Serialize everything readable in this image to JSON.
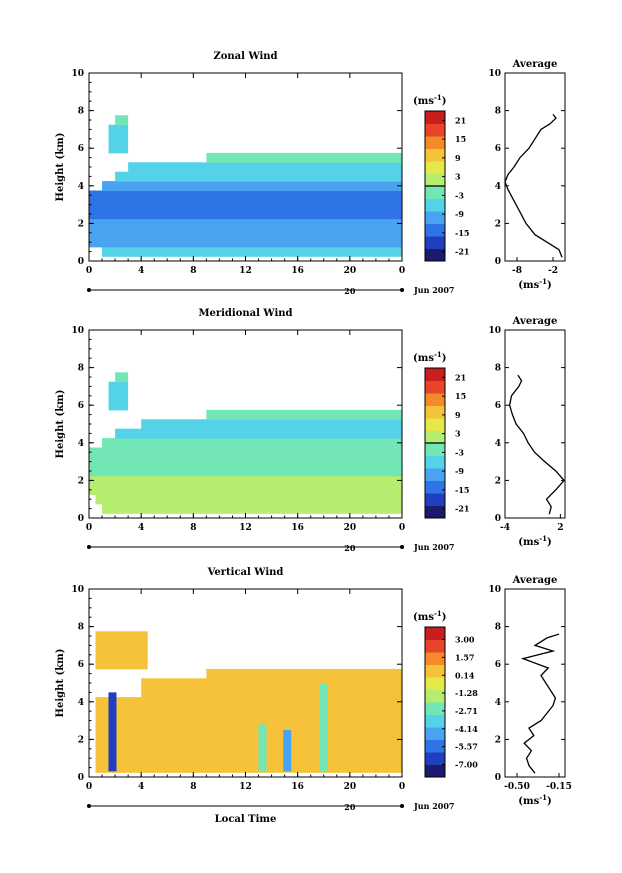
{
  "chart_data": [
    {
      "type": "heatmap",
      "title": "Zonal Wind",
      "ylabel": "Height (km)",
      "xlabel": "",
      "xlim": [
        0,
        24
      ],
      "ylim": [
        0,
        10
      ],
      "x_ticks": [
        "0",
        "4",
        "8",
        "12",
        "16",
        "20",
        "0"
      ],
      "y_ticks": [
        "0",
        "2",
        "4",
        "6",
        "8",
        "10"
      ],
      "date_label": "20",
      "date_suffix": "Jun 2007",
      "colorbar": {
        "unit": "(ms",
        "unit_exp": "-1",
        "unit_close": ")",
        "min": -24,
        "max": 24,
        "ticks": [
          "21",
          "15",
          "9",
          "3",
          "-3",
          "-9",
          "-15",
          "-21"
        ],
        "tick_values": [
          21,
          15,
          9,
          3,
          -3,
          -9,
          -15,
          -21
        ],
        "zero_line": true
      },
      "color_scale": [
        "#1a1a6e",
        "#1f3fbf",
        "#2f74e6",
        "#4aa3f0",
        "#54d3e8",
        "#73e6b5",
        "#b5ee6f",
        "#e6e84a",
        "#f5c23a",
        "#f58a2a",
        "#e8442a",
        "#c81e1e"
      ],
      "field": {
        "rows": [
          {
            "h": 0.5,
            "x": [
              1,
              24
            ],
            "v": -6
          },
          {
            "h": 1.0,
            "x": [
              0,
              24
            ],
            "v": -10
          },
          {
            "h": 1.5,
            "x": [
              0,
              24
            ],
            "v": -9
          },
          {
            "h": 2.0,
            "x": [
              0,
              24
            ],
            "v": -11
          },
          {
            "h": 2.5,
            "x": [
              0,
              24
            ],
            "v": -13
          },
          {
            "h": 3.0,
            "x": [
              0,
              24
            ],
            "v": -14
          },
          {
            "h": 3.5,
            "x": [
              0,
              24
            ],
            "v": -14
          },
          {
            "h": 4.0,
            "x": [
              1,
              24
            ],
            "v": -12
          },
          {
            "h": 4.5,
            "x": [
              2,
              24
            ],
            "v": -8
          },
          {
            "h": 5.0,
            "x": [
              3,
              24
            ],
            "v": -6
          },
          {
            "h": 5.5,
            "x": [
              9,
              24
            ],
            "v": -4
          },
          {
            "h": 6.0,
            "x": [
              1.5,
              3
            ],
            "v": -6
          },
          {
            "h": 6.5,
            "x": [
              1.5,
              3
            ],
            "v": -8
          },
          {
            "h": 7.0,
            "x": [
              1.5,
              3
            ],
            "v": -6
          },
          {
            "h": 7.5,
            "x": [
              2,
              3
            ],
            "v": -4
          }
        ]
      },
      "profile": {
        "title": "Average",
        "xlabel": "(ms",
        "xlabel_exp": "-1",
        "xlabel_close": ")",
        "xlim": [
          -10,
          0
        ],
        "x_ticks": [
          "-8",
          "-2"
        ],
        "x_tick_values": [
          -8,
          -2
        ],
        "y_ticks": [
          "0",
          "2",
          "4",
          "6",
          "8",
          "10"
        ],
        "points": [
          [
            -0.5,
            0.2
          ],
          [
            -1,
            0.6
          ],
          [
            -3,
            1.0
          ],
          [
            -5,
            1.4
          ],
          [
            -6.5,
            2.0
          ],
          [
            -7.5,
            2.6
          ],
          [
            -8.5,
            3.2
          ],
          [
            -9.5,
            3.8
          ],
          [
            -10,
            4.2
          ],
          [
            -9.5,
            4.6
          ],
          [
            -8.5,
            5.0
          ],
          [
            -7.5,
            5.5
          ],
          [
            -6,
            6.0
          ],
          [
            -5,
            6.5
          ],
          [
            -4,
            7.0
          ],
          [
            -2.5,
            7.3
          ],
          [
            -1.5,
            7.6
          ],
          [
            -2,
            7.8
          ]
        ]
      }
    },
    {
      "type": "heatmap",
      "title": "Meridional Wind",
      "ylabel": "Height (km)",
      "xlabel": "",
      "xlim": [
        0,
        24
      ],
      "ylim": [
        0,
        10
      ],
      "x_ticks": [
        "0",
        "4",
        "8",
        "12",
        "16",
        "20",
        "0"
      ],
      "y_ticks": [
        "0",
        "2",
        "4",
        "6",
        "8",
        "10"
      ],
      "date_label": "20",
      "date_suffix": "Jun 2007",
      "colorbar": {
        "unit": "(ms",
        "unit_exp": "-1",
        "unit_close": ")",
        "min": -24,
        "max": 24,
        "ticks": [
          "21",
          "15",
          "9",
          "3",
          "-3",
          "-9",
          "-15",
          "-21"
        ],
        "tick_values": [
          21,
          15,
          9,
          3,
          -3,
          -9,
          -15,
          -21
        ],
        "zero_line": true
      },
      "field": {
        "rows": [
          {
            "h": 0.5,
            "x": [
              1,
              24
            ],
            "v": 1
          },
          {
            "h": 1.0,
            "x": [
              0.5,
              24
            ],
            "v": 2
          },
          {
            "h": 1.5,
            "x": [
              0,
              24
            ],
            "v": 0
          },
          {
            "h": 2.0,
            "x": [
              0,
              24
            ],
            "v": 1
          },
          {
            "h": 2.5,
            "x": [
              0,
              24
            ],
            "v": -1
          },
          {
            "h": 3.0,
            "x": [
              0,
              24
            ],
            "v": -1
          },
          {
            "h": 3.5,
            "x": [
              0,
              24
            ],
            "v": -2
          },
          {
            "h": 4.0,
            "x": [
              1,
              24
            ],
            "v": -4
          },
          {
            "h": 4.5,
            "x": [
              2,
              24
            ],
            "v": -6
          },
          {
            "h": 5.0,
            "x": [
              4,
              24
            ],
            "v": -5
          },
          {
            "h": 5.5,
            "x": [
              9,
              24
            ],
            "v": -4
          },
          {
            "h": 6.0,
            "x": [
              1.5,
              3
            ],
            "v": -5
          },
          {
            "h": 6.5,
            "x": [
              1.5,
              3
            ],
            "v": -7
          },
          {
            "h": 7.0,
            "x": [
              1.5,
              3
            ],
            "v": -5
          },
          {
            "h": 7.5,
            "x": [
              2,
              3
            ],
            "v": -3
          }
        ]
      },
      "profile": {
        "title": "Average",
        "xlabel": "(ms",
        "xlabel_exp": "-1",
        "xlabel_close": ")",
        "xlim": [
          -4,
          2.5
        ],
        "x_ticks": [
          "-4",
          "2"
        ],
        "x_tick_values": [
          -4,
          2
        ],
        "y_ticks": [
          "0",
          "2",
          "4",
          "6",
          "8",
          "10"
        ],
        "points": [
          [
            0.8,
            0.2
          ],
          [
            1.0,
            0.6
          ],
          [
            0.5,
            1.0
          ],
          [
            1.5,
            1.5
          ],
          [
            2.4,
            2.0
          ],
          [
            1.5,
            2.5
          ],
          [
            0.3,
            3.0
          ],
          [
            -0.8,
            3.5
          ],
          [
            -1.5,
            4.0
          ],
          [
            -2.0,
            4.5
          ],
          [
            -2.8,
            5.0
          ],
          [
            -3.2,
            5.5
          ],
          [
            -3.5,
            6.0
          ],
          [
            -3.3,
            6.5
          ],
          [
            -2.5,
            7.0
          ],
          [
            -2.2,
            7.3
          ],
          [
            -2.6,
            7.6
          ]
        ]
      }
    },
    {
      "type": "heatmap",
      "title": "Vertical Wind",
      "ylabel": "Height (km)",
      "xlabel": "Local Time",
      "xlim": [
        0,
        24
      ],
      "ylim": [
        0,
        10
      ],
      "x_ticks": [
        "0",
        "4",
        "8",
        "12",
        "16",
        "20",
        "0"
      ],
      "y_ticks": [
        "0",
        "2",
        "4",
        "6",
        "8",
        "10"
      ],
      "date_label": "20",
      "date_suffix": "Jun 2007",
      "colorbar": {
        "unit": "(ms",
        "unit_exp": "-1",
        "unit_close": ")",
        "min": -8,
        "max": 4,
        "ticks": [
          "3.00",
          "1.57",
          "0.14",
          "-1.28",
          "-2.71",
          "-4.14",
          "-5.57",
          "-7.00"
        ],
        "tick_values": [
          3.0,
          1.57,
          0.14,
          -1.28,
          -2.71,
          -4.14,
          -5.57,
          -7.0
        ],
        "zero_line": false
      },
      "field": {
        "rows": [
          {
            "h": 0.5,
            "x": [
              0.5,
              24
            ],
            "v": 0.5
          },
          {
            "h": 1.0,
            "x": [
              0.5,
              24
            ],
            "v": 0.6
          },
          {
            "h": 1.5,
            "x": [
              0.5,
              24
            ],
            "v": 0.4
          },
          {
            "h": 2.0,
            "x": [
              0.5,
              24
            ],
            "v": 0.5
          },
          {
            "h": 2.5,
            "x": [
              0.5,
              24
            ],
            "v": 0.6
          },
          {
            "h": 3.0,
            "x": [
              0.5,
              24
            ],
            "v": 0.5
          },
          {
            "h": 3.5,
            "x": [
              0.5,
              24
            ],
            "v": 0.6
          },
          {
            "h": 4.0,
            "x": [
              0.5,
              24
            ],
            "v": 0.5
          },
          {
            "h": 4.5,
            "x": [
              4,
              24
            ],
            "v": 0.7
          },
          {
            "h": 5.0,
            "x": [
              4,
              24
            ],
            "v": 0.8
          },
          {
            "h": 5.5,
            "x": [
              9,
              24
            ],
            "v": 0.9
          },
          {
            "h": 6.0,
            "x": [
              0.5,
              4.5
            ],
            "v": 0.5
          },
          {
            "h": 6.5,
            "x": [
              0.5,
              4.5
            ],
            "v": 0.7
          },
          {
            "h": 7.0,
            "x": [
              0.5,
              4.5
            ],
            "v": 0.6
          },
          {
            "h": 7.5,
            "x": [
              0.5,
              4.5
            ],
            "v": 0.5
          }
        ],
        "downdrafts": [
          {
            "x": 1.8,
            "h": [
              0.3,
              4.5
            ],
            "v": -7.0
          },
          {
            "x": 13.3,
            "h": [
              0.3,
              2.8
            ],
            "v": -3.0
          },
          {
            "x": 15.2,
            "h": [
              0.3,
              2.5
            ],
            "v": -4.5
          },
          {
            "x": 18.0,
            "h": [
              0.3,
              5.0
            ],
            "v": -2.5
          }
        ]
      },
      "profile": {
        "title": "Average",
        "xlabel": "(ms",
        "xlabel_exp": "-1",
        "xlabel_close": ")",
        "xlim": [
          -0.6,
          -0.1
        ],
        "x_ticks": [
          "-0.50",
          "-0.15"
        ],
        "x_tick_values": [
          -0.5,
          -0.15
        ],
        "y_ticks": [
          "0",
          "2",
          "4",
          "6",
          "8",
          "10"
        ],
        "points": [
          [
            -0.35,
            0.2
          ],
          [
            -0.4,
            0.6
          ],
          [
            -0.42,
            1.0
          ],
          [
            -0.38,
            1.4
          ],
          [
            -0.44,
            1.8
          ],
          [
            -0.36,
            2.2
          ],
          [
            -0.4,
            2.6
          ],
          [
            -0.3,
            3.0
          ],
          [
            -0.25,
            3.4
          ],
          [
            -0.2,
            3.8
          ],
          [
            -0.18,
            4.2
          ],
          [
            -0.22,
            4.6
          ],
          [
            -0.26,
            5.0
          ],
          [
            -0.3,
            5.4
          ],
          [
            -0.24,
            5.8
          ],
          [
            -0.45,
            6.3
          ],
          [
            -0.2,
            6.7
          ],
          [
            -0.35,
            7.0
          ],
          [
            -0.25,
            7.4
          ],
          [
            -0.15,
            7.6
          ]
        ]
      }
    }
  ]
}
